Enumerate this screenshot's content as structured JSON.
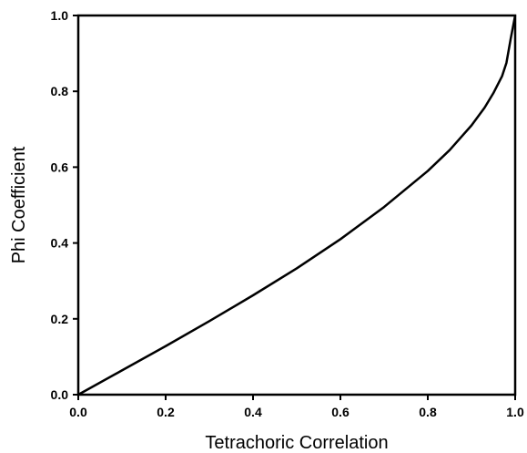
{
  "chart_data": {
    "type": "line",
    "title": "",
    "xlabel": "Tetrachoric Correlation",
    "ylabel": "Phi Coefficient",
    "xlim": [
      0.0,
      1.0
    ],
    "ylim": [
      0.0,
      1.0
    ],
    "grid": false,
    "legend": "none",
    "x_ticks": [
      "0.0",
      "0.2",
      "0.4",
      "0.6",
      "0.8",
      "1.0"
    ],
    "y_ticks": [
      "0.0",
      "0.2",
      "0.4",
      "0.6",
      "0.8",
      "1.0"
    ],
    "series": [
      {
        "x": [
          0.0,
          0.1,
          0.2,
          0.3,
          0.4,
          0.5,
          0.6,
          0.7,
          0.8,
          0.85,
          0.9,
          0.93,
          0.95,
          0.97,
          0.98,
          0.99,
          1.0
        ],
        "y": [
          0.0,
          0.064,
          0.128,
          0.194,
          0.262,
          0.333,
          0.41,
          0.495,
          0.59,
          0.645,
          0.71,
          0.757,
          0.795,
          0.84,
          0.875,
          0.94,
          1.0
        ],
        "color": "#000000"
      }
    ]
  }
}
